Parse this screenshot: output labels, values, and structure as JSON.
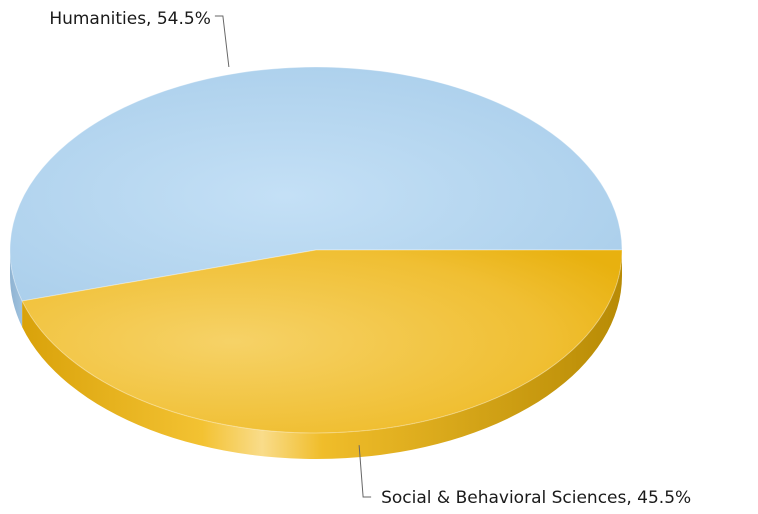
{
  "chart_data": {
    "type": "pie",
    "title": "",
    "style": "3d",
    "slices": [
      {
        "name": "Humanities",
        "value": 54.5,
        "color": "#b3d5ef",
        "label": "Humanities, 54.5%"
      },
      {
        "name": "Social & Behavioral Sciences",
        "value": 45.5,
        "color": "#f2c12e",
        "label": "Social & Behavioral Sciences, 45.5%"
      }
    ]
  }
}
